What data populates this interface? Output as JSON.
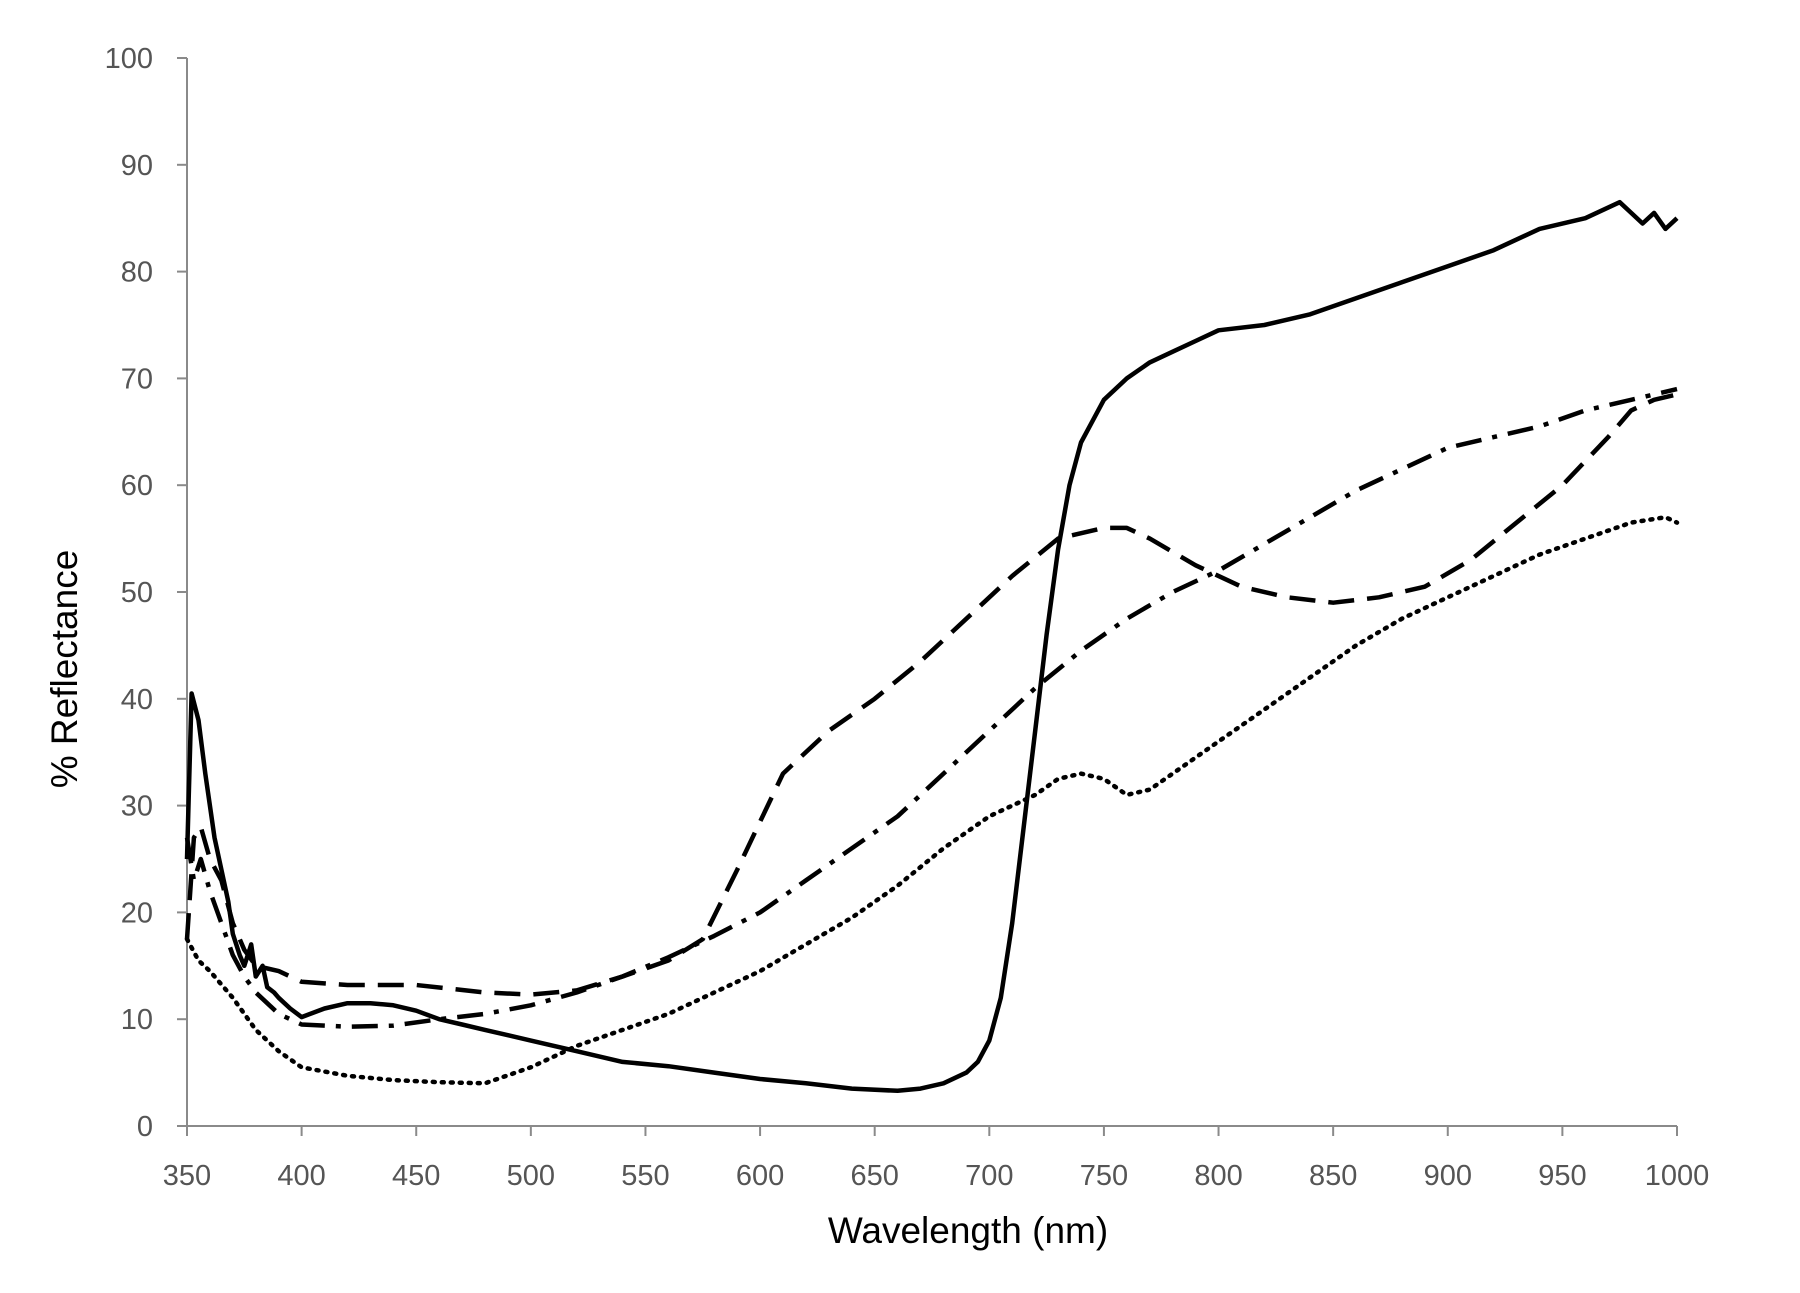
{
  "chart_data": {
    "type": "line",
    "title": "",
    "xlabel": "Wavelength (nm)",
    "ylabel": "% Reflectance",
    "xlim": [
      350,
      1000
    ],
    "ylim": [
      0,
      100
    ],
    "xticks": [
      350,
      400,
      450,
      500,
      550,
      600,
      650,
      700,
      750,
      800,
      850,
      900,
      950,
      1000
    ],
    "yticks": [
      0,
      10,
      20,
      30,
      40,
      50,
      60,
      70,
      80,
      90,
      100
    ],
    "grid": false,
    "legend": "none",
    "series": [
      {
        "style": "solid",
        "color": "#000000",
        "x": [
          350,
          352,
          355,
          358,
          360,
          362,
          365,
          368,
          370,
          373,
          375,
          378,
          380,
          383,
          385,
          388,
          390,
          395,
          400,
          410,
          420,
          430,
          440,
          450,
          460,
          470,
          480,
          490,
          500,
          520,
          540,
          560,
          580,
          600,
          620,
          640,
          660,
          670,
          680,
          690,
          695,
          700,
          705,
          710,
          715,
          720,
          725,
          730,
          735,
          740,
          745,
          750,
          760,
          770,
          780,
          790,
          800,
          820,
          840,
          860,
          880,
          900,
          920,
          940,
          960,
          975,
          980,
          985,
          990,
          995,
          1000
        ],
        "y": [
          25,
          40.5,
          38,
          33,
          30,
          27,
          24,
          21,
          18,
          16,
          15,
          17,
          14,
          15,
          13,
          12.5,
          12,
          11,
          10.2,
          11,
          11.5,
          11.5,
          11.3,
          10.8,
          10,
          9.5,
          9,
          8.5,
          8,
          7,
          6,
          5.6,
          5,
          4.4,
          4,
          3.5,
          3.3,
          3.5,
          4,
          5,
          6,
          8,
          12,
          19,
          28,
          37,
          46,
          54,
          60,
          64,
          66,
          68,
          70,
          71.5,
          72.5,
          73.5,
          74.5,
          75,
          76,
          77.5,
          79,
          80.5,
          82,
          84,
          85,
          86.5,
          85.5,
          84.5,
          85.5,
          84,
          85
        ]
      },
      {
        "style": "dashed",
        "color": "#000000",
        "x": [
          350,
          353,
          356,
          360,
          365,
          370,
          375,
          380,
          390,
          400,
          420,
          450,
          480,
          500,
          520,
          540,
          560,
          575,
          590,
          610,
          630,
          650,
          670,
          690,
          710,
          730,
          750,
          760,
          770,
          790,
          810,
          830,
          850,
          870,
          890,
          910,
          930,
          950,
          970,
          980,
          990,
          1000
        ],
        "y": [
          17.5,
          27,
          28,
          25,
          23,
          19,
          16.5,
          15,
          14.5,
          13.5,
          13.2,
          13.2,
          12.5,
          12.3,
          12.7,
          14,
          15.5,
          17.5,
          24,
          33,
          37,
          40,
          43.5,
          47.5,
          51.5,
          55,
          56,
          56,
          55,
          52.5,
          50.5,
          49.5,
          49,
          49.5,
          50.5,
          53,
          56.5,
          60,
          64.5,
          67,
          68,
          68.5
        ]
      },
      {
        "style": "dashdot",
        "color": "#000000",
        "x": [
          350,
          353,
          356,
          360,
          365,
          370,
          375,
          380,
          390,
          400,
          420,
          440,
          460,
          480,
          500,
          520,
          540,
          560,
          580,
          600,
          620,
          640,
          660,
          680,
          700,
          720,
          740,
          760,
          780,
          800,
          820,
          840,
          860,
          880,
          900,
          920,
          940,
          960,
          980,
          1000
        ],
        "y": [
          27,
          23,
          25,
          22,
          19,
          16,
          14,
          12.5,
          10.5,
          9.5,
          9.3,
          9.4,
          10,
          10.5,
          11.3,
          12.5,
          14,
          15.8,
          17.8,
          20,
          23,
          26,
          29,
          33,
          37,
          41,
          44.5,
          47.5,
          50,
          52,
          54.5,
          57,
          59.5,
          61.5,
          63.5,
          64.5,
          65.5,
          67,
          68,
          69
        ]
      },
      {
        "style": "dotted",
        "color": "#000000",
        "x": [
          350,
          355,
          360,
          370,
          380,
          390,
          400,
          420,
          440,
          460,
          480,
          500,
          520,
          540,
          560,
          580,
          600,
          620,
          640,
          660,
          680,
          700,
          720,
          730,
          740,
          750,
          760,
          770,
          780,
          800,
          820,
          840,
          860,
          880,
          900,
          920,
          940,
          960,
          980,
          995,
          1000
        ],
        "y": [
          17.5,
          15.5,
          14.5,
          12,
          9,
          7,
          5.5,
          4.7,
          4.3,
          4.1,
          4,
          5.5,
          7.5,
          9,
          10.5,
          12.5,
          14.5,
          17,
          19.5,
          22.5,
          26,
          29,
          31,
          32.5,
          33,
          32.5,
          31,
          31.5,
          33,
          36,
          39,
          42,
          45,
          47.5,
          49.5,
          51.5,
          53.5,
          55,
          56.5,
          57,
          56.5
        ]
      }
    ]
  }
}
